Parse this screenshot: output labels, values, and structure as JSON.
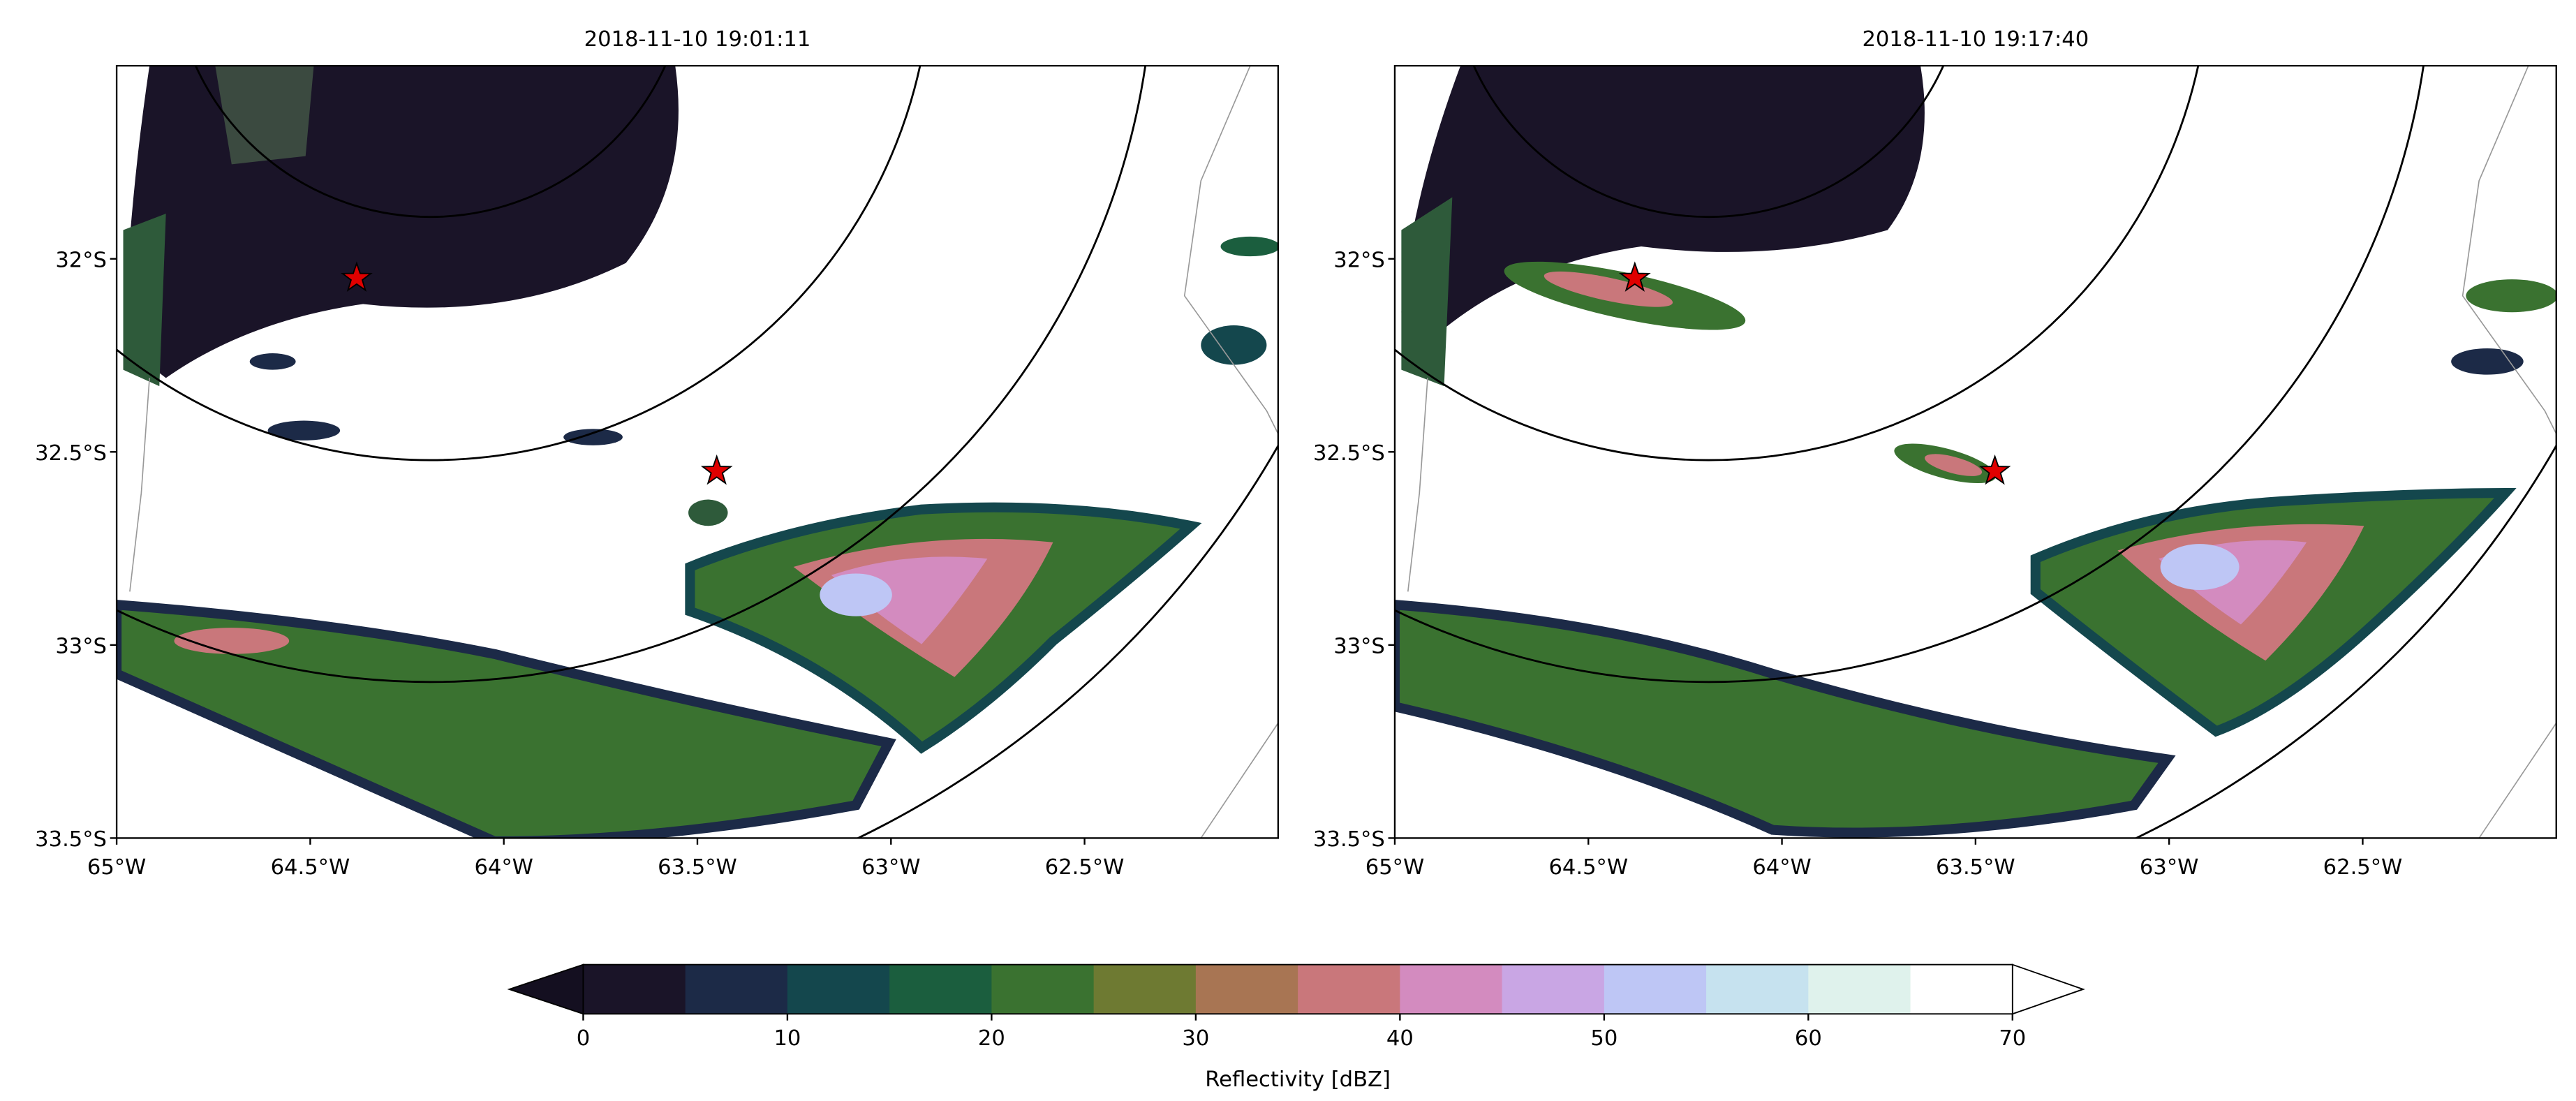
{
  "panels": [
    {
      "title": "2018-11-10 19:01:11"
    },
    {
      "title": "2018-11-10 19:17:40"
    }
  ],
  "xlim": [
    -65,
    -62
  ],
  "ylim": [
    -33.5,
    -31.5
  ],
  "xticks": [
    {
      "value": -65,
      "label": "65°W"
    },
    {
      "value": -64.5,
      "label": "64.5°W"
    },
    {
      "value": -64,
      "label": "64°W"
    },
    {
      "value": -63.5,
      "label": "63.5°W"
    },
    {
      "value": -63,
      "label": "63°W"
    },
    {
      "value": -62.5,
      "label": "62.5°W"
    }
  ],
  "yticks": [
    {
      "value": -33.5,
      "label": "33.5°S"
    },
    {
      "value": -33,
      "label": "33°S"
    },
    {
      "value": -32.5,
      "label": "32.5°S"
    },
    {
      "value": -32,
      "label": "32°S"
    }
  ],
  "markers": {
    "lon": [
      -64.38,
      -63.45
    ],
    "lat": [
      -32.05,
      -32.55
    ],
    "color": "#e00000"
  },
  "colorbar": {
    "label": "Reflectivity [dBZ]",
    "ticks": [
      0,
      10,
      20,
      30,
      40,
      50,
      60,
      70
    ],
    "levels": [
      0,
      5,
      10,
      15,
      20,
      25,
      30,
      35,
      40,
      45,
      50,
      55,
      60,
      65,
      70
    ],
    "colors": [
      "#1a1428",
      "#1c2a47",
      "#14474d",
      "#1b5e3e",
      "#3a7230",
      "#6e7a32",
      "#a87553",
      "#c9777b",
      "#d38bbf",
      "#c9a6e4",
      "#bec6f5",
      "#c6e2ef",
      "#dff2ec",
      "#ffffff"
    ],
    "under_color": "#140f20",
    "over_color": "#ffffff"
  }
}
